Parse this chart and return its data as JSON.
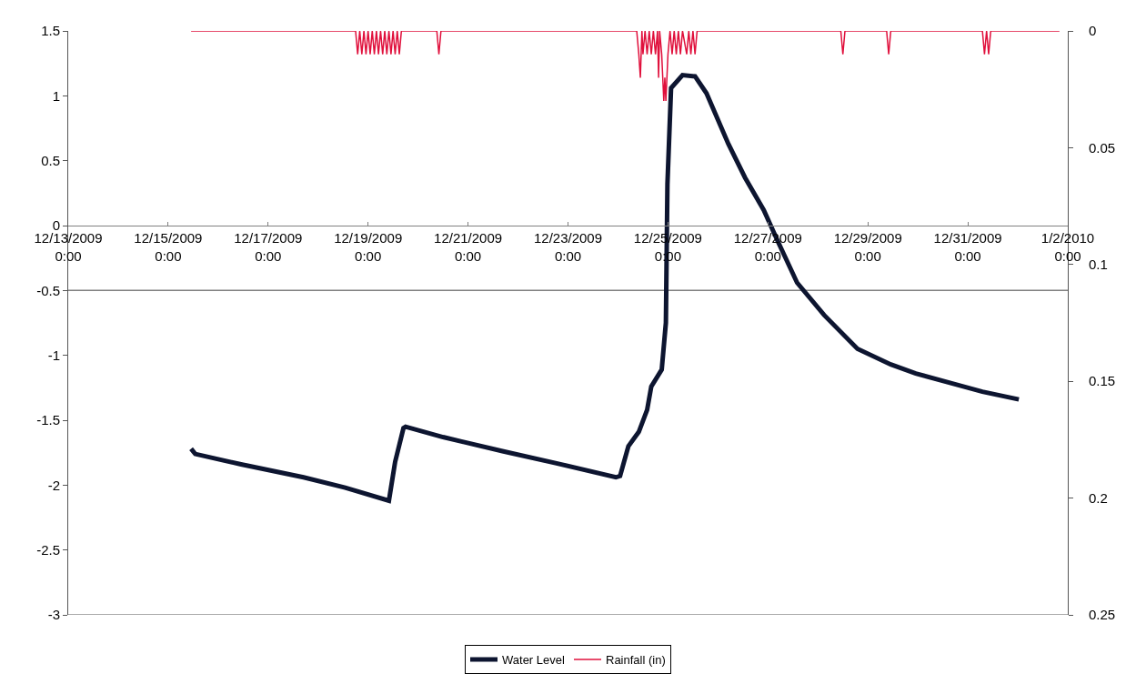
{
  "chart_data": {
    "type": "line",
    "xlim": [
      "2009-12-13",
      "2010-01-02"
    ],
    "xticks": [
      {
        "value": "2009-12-13",
        "label": "12/13/2009\n0:00"
      },
      {
        "value": "2009-12-15",
        "label": "12/15/2009\n0:00"
      },
      {
        "value": "2009-12-17",
        "label": "12/17/2009\n0:00"
      },
      {
        "value": "2009-12-19",
        "label": "12/19/2009\n0:00"
      },
      {
        "value": "2009-12-21",
        "label": "12/21/2009\n0:00"
      },
      {
        "value": "2009-12-23",
        "label": "12/23/2009\n0:00"
      },
      {
        "value": "2009-12-25",
        "label": "12/25/2009\n0:00"
      },
      {
        "value": "2009-12-27",
        "label": "12/27/2009\n0:00"
      },
      {
        "value": "2009-12-29",
        "label": "12/29/2009\n0:00"
      },
      {
        "value": "2009-12-31",
        "label": "12/31/2009\n0:00"
      },
      {
        "value": "2010-01-02",
        "label": "1/2/2010\n0:00"
      }
    ],
    "ylim": [
      -3,
      1.5
    ],
    "yticks": [
      -3,
      -2.5,
      -2,
      -1.5,
      -1,
      -0.5,
      0,
      0.5,
      1,
      1.5
    ],
    "y2lim": [
      0.25,
      0
    ],
    "y2ticks": [
      0,
      0.05,
      0.1,
      0.15,
      0.2,
      0.25
    ],
    "grid": false,
    "legend": "bottom",
    "ref_lines": [
      {
        "axis": "y",
        "value": -0.5,
        "color": "#808080"
      }
    ],
    "series": [
      {
        "name": "Water Level",
        "color": "#0d1530",
        "x": [
          "2009-12-15T11:00",
          "2009-12-15T13:00",
          "2009-12-16T11:00",
          "2009-12-17T17:00",
          "2009-12-18T13:00",
          "2009-12-19T10:00",
          "2009-12-19T13:00",
          "2009-12-19T17:00",
          "2009-12-19T18:00",
          "2009-12-20T12:00",
          "2009-12-21T17:00",
          "2009-12-22T18:00",
          "2009-12-23T23:00",
          "2009-12-24T01:00",
          "2009-12-24T05:00",
          "2009-12-24T10:00",
          "2009-12-24T14:00",
          "2009-12-24T16:00",
          "2009-12-24T21:00",
          "2009-12-24T23:00",
          "2009-12-24T23:45",
          "2009-12-25T01:30",
          "2009-12-25T07:00",
          "2009-12-25T13:00",
          "2009-12-25T18:30",
          "2009-12-26T05:00",
          "2009-12-26T13:00",
          "2009-12-26T22:00",
          "2009-12-27T05:00",
          "2009-12-27T14:00",
          "2009-12-28T03:00",
          "2009-12-28T19:00",
          "2009-12-29T11:00",
          "2009-12-29T23:00",
          "2009-12-30T15:00",
          "2009-12-31T07:00",
          "2010-01-01T00:30"
        ],
        "values": [
          -1.72,
          -1.76,
          -1.84,
          -1.94,
          -2.02,
          -2.12,
          -1.82,
          -1.56,
          -1.55,
          -1.63,
          -1.74,
          -1.83,
          -1.94,
          -1.93,
          -1.7,
          -1.59,
          -1.42,
          -1.24,
          -1.11,
          -0.75,
          0.32,
          1.06,
          1.16,
          1.15,
          1.02,
          0.63,
          0.37,
          0.12,
          -0.13,
          -0.44,
          -0.69,
          -0.95,
          -1.07,
          -1.14,
          -1.21,
          -1.28,
          -1.34
        ]
      },
      {
        "name": "Rainfall (in)",
        "color": "#e0103c",
        "axis": "y2",
        "x": [
          "2009-12-15T11:00",
          "2009-12-18T18:00",
          "2009-12-18T19:00",
          "2009-12-18T20:00",
          "2009-12-18T21:00",
          "2009-12-18T22:00",
          "2009-12-18T23:00",
          "2009-12-19T00:00",
          "2009-12-19T01:00",
          "2009-12-19T02:00",
          "2009-12-19T03:00",
          "2009-12-19T04:00",
          "2009-12-19T05:00",
          "2009-12-19T06:00",
          "2009-12-19T07:00",
          "2009-12-19T08:00",
          "2009-12-19T09:00",
          "2009-12-19T10:00",
          "2009-12-19T11:00",
          "2009-12-19T12:00",
          "2009-12-19T13:00",
          "2009-12-19T14:00",
          "2009-12-19T15:00",
          "2009-12-19T16:00",
          "2009-12-20T09:00",
          "2009-12-20T10:00",
          "2009-12-20T11:00",
          "2009-12-24T09:00",
          "2009-12-24T10:00",
          "2009-12-24T10:45",
          "2009-12-24T11:30",
          "2009-12-24T12:00",
          "2009-12-24T13:00",
          "2009-12-24T14:00",
          "2009-12-24T15:00",
          "2009-12-24T16:00",
          "2009-12-24T17:00",
          "2009-12-24T18:00",
          "2009-12-24T19:00",
          "2009-12-24T19:30",
          "2009-12-24T20:00",
          "2009-12-24T21:00",
          "2009-12-24T22:00",
          "2009-12-24T22:30",
          "2009-12-24T23:00",
          "2009-12-24T23:30",
          "2009-12-25T00:00",
          "2009-12-25T01:00",
          "2009-12-25T02:00",
          "2009-12-25T03:00",
          "2009-12-25T04:00",
          "2009-12-25T05:00",
          "2009-12-25T06:00",
          "2009-12-25T07:00",
          "2009-12-25T09:00",
          "2009-12-25T10:00",
          "2009-12-25T11:00",
          "2009-12-25T12:00",
          "2009-12-25T13:00",
          "2009-12-25T14:00",
          "2009-12-28T11:00",
          "2009-12-28T12:00",
          "2009-12-28T13:00",
          "2009-12-29T09:00",
          "2009-12-29T10:00",
          "2009-12-29T11:00",
          "2009-12-31T07:00",
          "2009-12-31T08:00",
          "2009-12-31T09:00",
          "2009-12-31T10:00",
          "2009-12-31T11:00",
          "2010-01-01T20:00"
        ],
        "values": [
          0,
          0,
          0.01,
          0,
          0.01,
          0,
          0.01,
          0,
          0.01,
          0,
          0.01,
          0,
          0.01,
          0,
          0.01,
          0,
          0.01,
          0,
          0.01,
          0,
          0.01,
          0,
          0.01,
          0,
          0,
          0.01,
          0,
          0,
          0.01,
          0.02,
          0,
          0.01,
          0,
          0.01,
          0,
          0.01,
          0,
          0.01,
          0,
          0.02,
          0,
          0.01,
          0.03,
          0.02,
          0.03,
          0.02,
          0.01,
          0,
          0.01,
          0,
          0.01,
          0,
          0.01,
          0,
          0.01,
          0,
          0.01,
          0,
          0.01,
          0,
          0,
          0.01,
          0,
          0,
          0.01,
          0,
          0,
          0.01,
          0,
          0.01,
          0,
          0
        ]
      }
    ]
  }
}
